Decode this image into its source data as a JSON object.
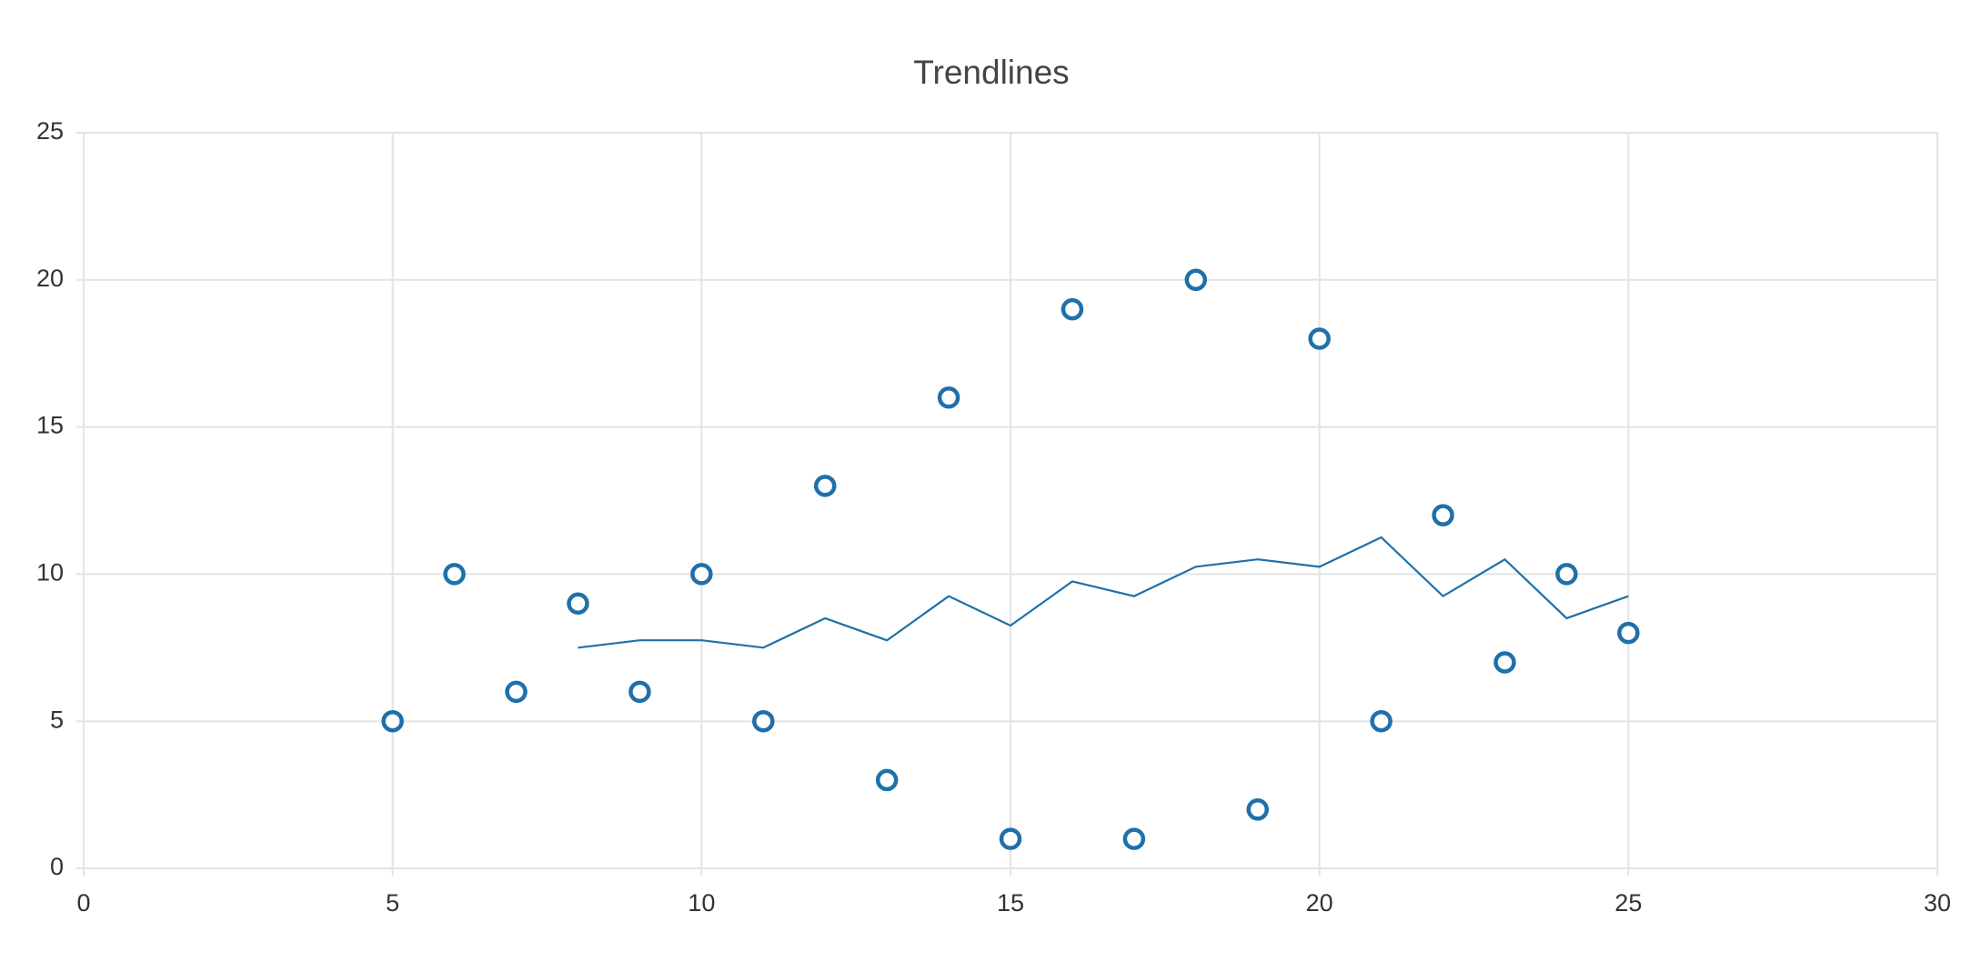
{
  "chart_data": {
    "type": "scatter",
    "title": "Trendlines",
    "xlim": [
      0,
      30
    ],
    "xticks": [
      0,
      5,
      10,
      15,
      20,
      25,
      30
    ],
    "ylim": [
      0,
      25
    ],
    "yticks": [
      0,
      5,
      10,
      15,
      20,
      25
    ],
    "grid": true,
    "series": [
      {
        "type": "scatter",
        "color": "#1f70a9",
        "x": [
          5,
          6,
          7,
          8,
          9,
          10,
          11,
          12,
          13,
          14,
          15,
          16,
          17,
          18,
          19,
          20,
          21,
          22,
          23,
          24,
          25
        ],
        "values": [
          5,
          10,
          6,
          9,
          6,
          10,
          5,
          13,
          3,
          16,
          1,
          19,
          1,
          20,
          2,
          18,
          5,
          12,
          7,
          10,
          8
        ]
      },
      {
        "type": "line",
        "color": "#1f70a9",
        "x": [
          8,
          9,
          10,
          11,
          12,
          13,
          14,
          15,
          16,
          17,
          18,
          19,
          20,
          21,
          22,
          23,
          24,
          25
        ],
        "values": [
          7.5,
          7.75,
          7.75,
          7.5,
          8.5,
          7.75,
          9.25,
          8.25,
          9.75,
          9.25,
          10.25,
          10.5,
          10.25,
          11.25,
          9.25,
          10.5,
          8.5,
          9.25
        ]
      }
    ]
  }
}
